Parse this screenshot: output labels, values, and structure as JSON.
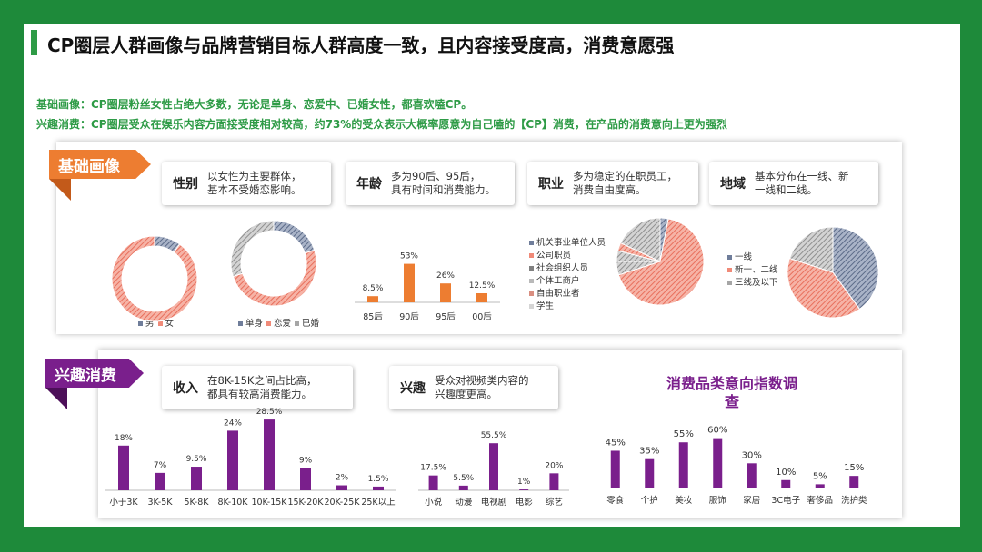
{
  "title": "CP圈层人群画像与品牌营销目标人群高度一致，且内容接受度高，消费意愿强",
  "subtitles": [
    "基础画像：CP圈层粉丝女性占绝大多数，无论是单身、恋爱中、已婚女性，都喜欢嗑CP。",
    "兴趣消费：CP圈层受众在娱乐内容方面接受度相对较高，约73%的受众表示大概率愿意为自己嗑的【CP】消费，在产品的消费意向上更为强烈"
  ],
  "section1": {
    "tag": "基础画像",
    "info": [
      {
        "key": "性别",
        "value": "以女性为主要群体，\n基本不受婚恋影响。"
      },
      {
        "key": "年龄",
        "value": "多为90后、95后，\n具有时间和消费能力。"
      },
      {
        "key": "职业",
        "value": "多为稳定的在职员工，\n消费自由度高。"
      },
      {
        "key": "地域",
        "value": "基本分布在一线、新\n一线和二线。"
      }
    ]
  },
  "section2": {
    "tag": "兴趣消费",
    "info": [
      {
        "key": "收入",
        "value": "在8K-15K之间占比高，\n都具有较高消费能力。"
      },
      {
        "key": "兴趣",
        "value": "受众对视频类内容的\n兴趣度更高。"
      }
    ],
    "chart_title": "消费品类意向指数调\n查"
  },
  "colors": {
    "green": "#2e9b46",
    "orange": "#ed7d31",
    "purple": "#7a1f8c",
    "salmon": "#f08a78",
    "slate": "#6f7d9a",
    "gray": "#a6a6a6"
  },
  "chart_data": [
    {
      "type": "pie",
      "donut": true,
      "title": "",
      "labels": [
        "男",
        "女"
      ],
      "values": [
        10,
        90
      ],
      "colors": [
        "#6f7d9a",
        "#f08a78"
      ],
      "legend": "bottom"
    },
    {
      "type": "pie",
      "donut": true,
      "title": "",
      "labels": [
        "单身",
        "恋爱",
        "已婚"
      ],
      "values": [
        20,
        50,
        30
      ],
      "colors": [
        "#6f7d9a",
        "#f08a78",
        "#a6a6a6"
      ],
      "legend": "bottom"
    },
    {
      "type": "bar",
      "title": "",
      "categories": [
        "85后",
        "90后",
        "95后",
        "00后"
      ],
      "values": [
        8.5,
        53,
        26,
        12.5
      ],
      "labels": [
        "8.5%",
        "53%",
        "26%",
        "12.5%"
      ],
      "color": "#ed7d31",
      "ylim": [
        0,
        60
      ]
    },
    {
      "type": "pie",
      "title": "",
      "labels": [
        "机关事业单位人员",
        "公司职员",
        "社会组织人员",
        "个体工商户",
        "自由职业者",
        "学生"
      ],
      "values": [
        3,
        67,
        5,
        4,
        3,
        18
      ],
      "colors": [
        "#6f7d9a",
        "#f08a78",
        "#808080",
        "#b9b9b9",
        "#d98e80",
        "#d5d5d5"
      ],
      "legend": "left"
    },
    {
      "type": "pie",
      "title": "",
      "labels": [
        "一线",
        "新一、二线",
        "三线及以下"
      ],
      "values": [
        40,
        40,
        20
      ],
      "colors": [
        "#6f7d9a",
        "#f08a78",
        "#a6a6a6"
      ],
      "legend": "left"
    },
    {
      "type": "bar",
      "title": "",
      "categories": [
        "小于3K",
        "3K-5K",
        "5K-8K",
        "8K-10K",
        "10K-15K",
        "15K-20K",
        "20K-25K",
        "25K以上"
      ],
      "values": [
        18,
        7,
        9.5,
        24,
        28.5,
        9,
        2,
        1.5
      ],
      "labels": [
        "18%",
        "7%",
        "9.5%",
        "24%",
        "28.5%",
        "9%",
        "2%",
        "1.5%"
      ],
      "color": "#7a1f8c",
      "ylim": [
        0,
        30
      ]
    },
    {
      "type": "bar",
      "title": "",
      "categories": [
        "小说",
        "动漫",
        "电视剧",
        "电影",
        "综艺"
      ],
      "values": [
        17.5,
        5.5,
        55.5,
        1,
        20
      ],
      "labels": [
        "17.5%",
        "5.5%",
        "55.5%",
        "1%",
        "20%"
      ],
      "color": "#7a1f8c",
      "ylim": [
        0,
        60
      ]
    },
    {
      "type": "bar",
      "title": "消费品类意向指数调查",
      "categories": [
        "零食",
        "个护",
        "美妆",
        "服饰",
        "家居",
        "3C电子",
        "奢侈品",
        "洗护类"
      ],
      "values": [
        45,
        35,
        55,
        60,
        30,
        10,
        5,
        15
      ],
      "labels": [
        "45%",
        "35%",
        "55%",
        "60%",
        "30%",
        "10%",
        "5%",
        "15%"
      ],
      "color": "#7a1f8c",
      "ylim": [
        0,
        65
      ]
    }
  ]
}
